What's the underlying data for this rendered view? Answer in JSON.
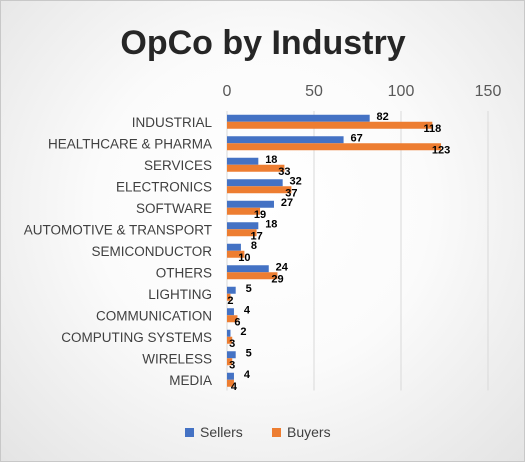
{
  "chart_data": {
    "type": "bar",
    "orientation": "horizontal",
    "title": "OpCo by Industry",
    "categories": [
      "INDUSTRIAL",
      "HEALTHCARE & PHARMA",
      "SERVICES",
      "ELECTRONICS",
      "SOFTWARE",
      "AUTOMOTIVE & TRANSPORT",
      "SEMICONDUCTOR",
      "OTHERS",
      "LIGHTING",
      "COMMUNICATION",
      "COMPUTING SYSTEMS",
      "WIRELESS",
      "MEDIA"
    ],
    "series": [
      {
        "name": "Sellers",
        "values": [
          82,
          67,
          18,
          32,
          27,
          18,
          8,
          24,
          5,
          4,
          2,
          5,
          4
        ],
        "color": "#4472C4"
      },
      {
        "name": "Buyers",
        "values": [
          118,
          123,
          33,
          37,
          19,
          17,
          10,
          29,
          2,
          6,
          3,
          3,
          4
        ],
        "color": "#ED7D31"
      }
    ],
    "xlim": [
      0,
      150
    ],
    "x_ticks": [
      "0",
      "50",
      "100",
      "150"
    ],
    "x_axis_position": "top",
    "grid": true,
    "legend": "bottom",
    "data_labels": true
  }
}
